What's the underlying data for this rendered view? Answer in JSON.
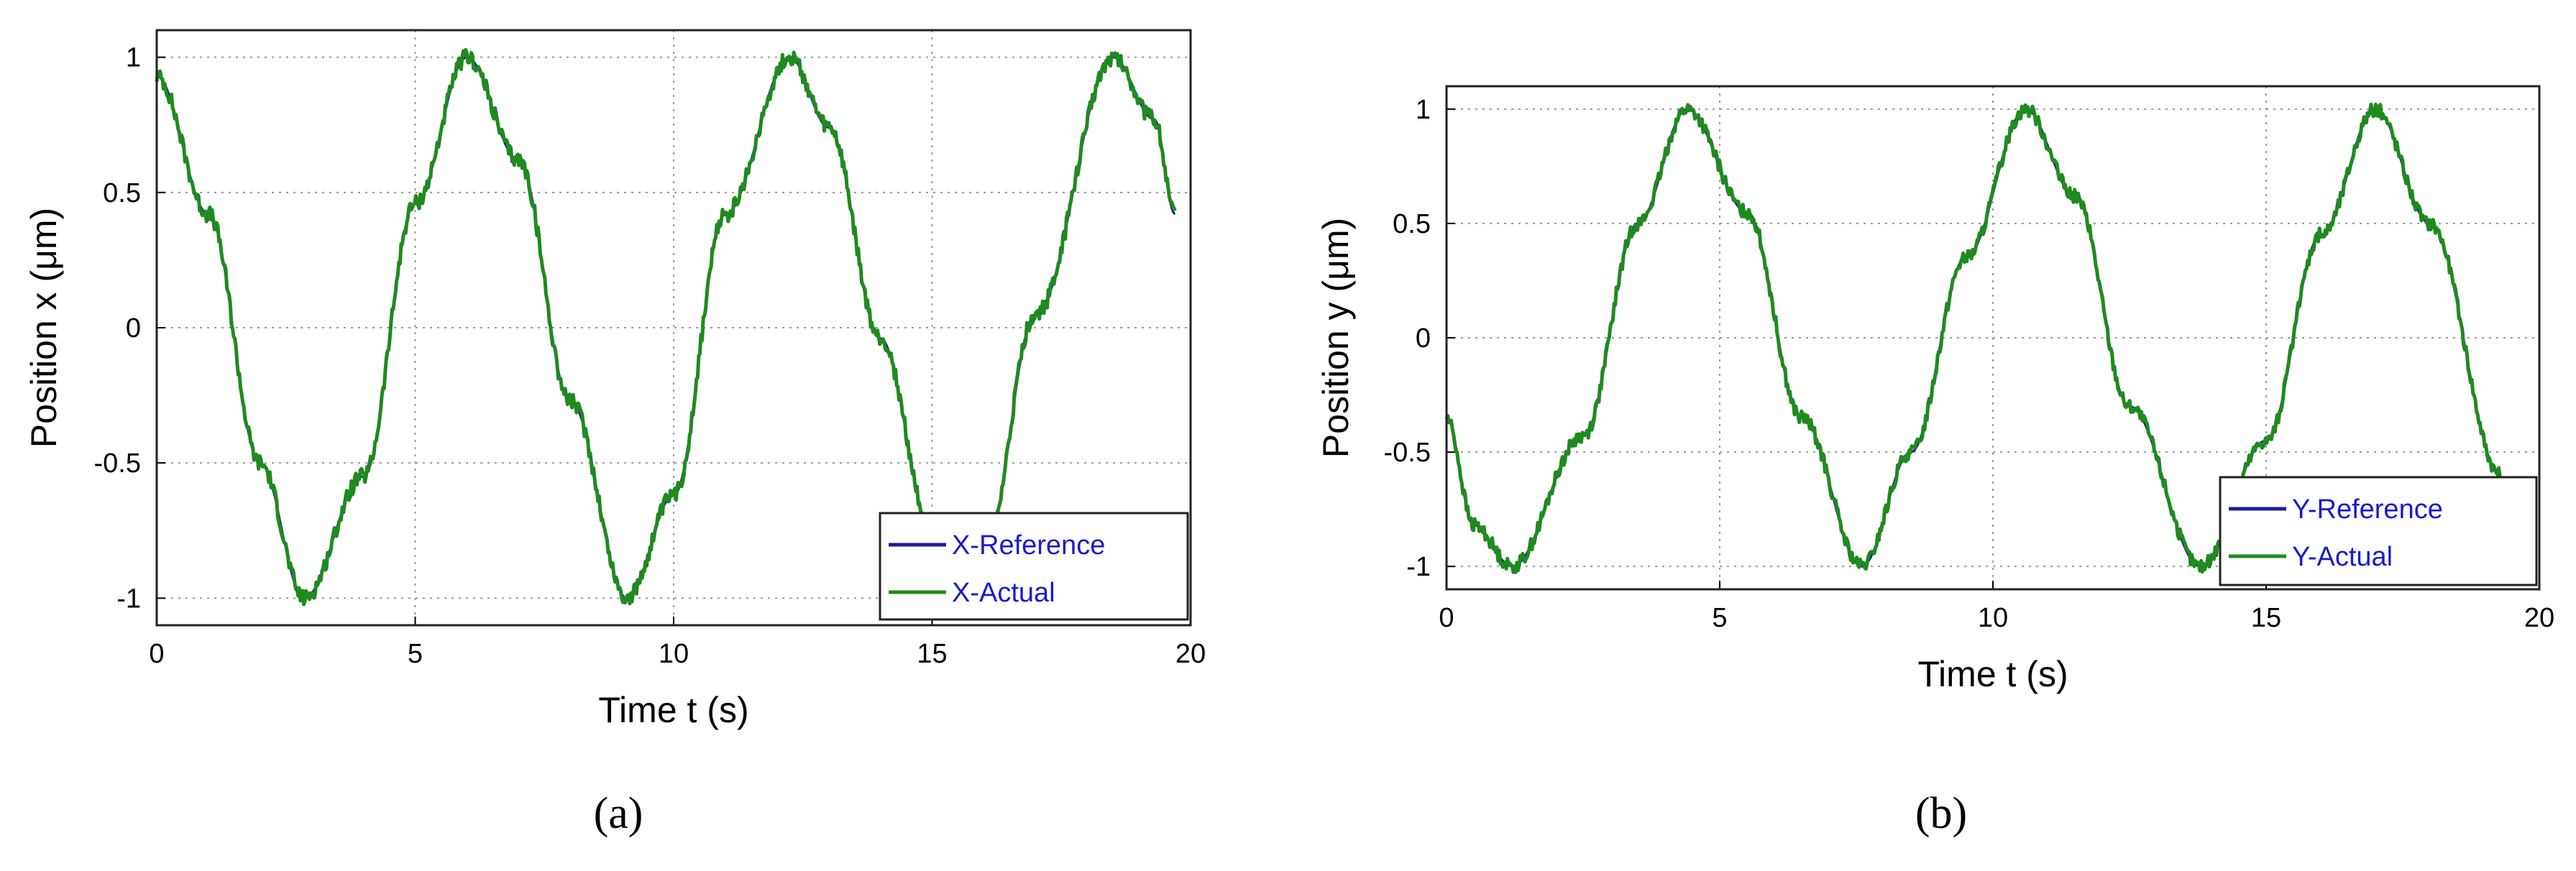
{
  "colors": {
    "reference": "#1c1c9c",
    "actual": "#1f8a1f",
    "grid": "#9a9a9a",
    "legend_text": "#1a1acc"
  },
  "chart_data": [
    {
      "panel": "a",
      "type": "line",
      "xlabel": "Time t (s)",
      "ylabel": "Position x (μm)",
      "xlim": [
        0,
        20
      ],
      "ylim": [
        -1.1,
        1.1
      ],
      "xticks": [
        0,
        5,
        10,
        15,
        20
      ],
      "yticks": [
        1,
        0.5,
        0,
        -0.5,
        -1
      ],
      "ytick_labels": [
        "1",
        "0.5",
        "0",
        "-0.5",
        "-1"
      ],
      "grid": true,
      "legend_position": "bottom-right",
      "series": [
        {
          "name": "X-Reference",
          "x": [
            0,
            1,
            2,
            2.85,
            4,
            5,
            6,
            7,
            8,
            9.1,
            10,
            11,
            12.25,
            13,
            14,
            15,
            15.5,
            16,
            17,
            18.5,
            19.3,
            19.7
          ],
          "y": [
            0.93,
            0.42,
            -0.5,
            -1,
            -0.55,
            0.46,
            1,
            0.62,
            -0.27,
            -1,
            -0.62,
            0.42,
            1,
            0.74,
            -0.04,
            -0.75,
            -1,
            -0.85,
            0.05,
            1,
            0.77,
            0.42
          ]
        },
        {
          "name": "X-Actual",
          "x": [
            0,
            1,
            2,
            2.85,
            4,
            5,
            6,
            7,
            8,
            9.1,
            10,
            11,
            12.25,
            13,
            14,
            15,
            15.5,
            16,
            17,
            18.5,
            19.3,
            19.7
          ],
          "y": [
            0.93,
            0.42,
            -0.5,
            -1,
            -0.55,
            0.46,
            1,
            0.62,
            -0.27,
            -1,
            -0.62,
            0.42,
            1,
            0.74,
            -0.04,
            -0.75,
            -1,
            -0.85,
            0.05,
            1,
            0.77,
            0.42
          ]
        }
      ],
      "caption": "(a)"
    },
    {
      "panel": "b",
      "type": "line",
      "xlabel": "Time t (s)",
      "ylabel": "Position y (μm)",
      "xlim": [
        0,
        20
      ],
      "ylim": [
        -1.1,
        1.1
      ],
      "xticks": [
        0,
        5,
        10,
        15,
        20
      ],
      "yticks": [
        1,
        0.5,
        0,
        -0.5,
        -1
      ],
      "ytick_labels": [
        "1",
        "0.5",
        "0",
        "-0.5",
        "-1"
      ],
      "grid": true,
      "legend_position": "bottom-right",
      "series": [
        {
          "name": "Y-Reference",
          "x": [
            0,
            0.5,
            1.2,
            2.5,
            3.5,
            4.4,
            5.5,
            6.5,
            7.6,
            8.5,
            9.5,
            10.6,
            11.5,
            12.5,
            13.8,
            15,
            16,
            17,
            18,
            19.3
          ],
          "y": [
            -0.35,
            -0.82,
            -1,
            -0.43,
            0.5,
            1,
            0.55,
            -0.35,
            -1,
            -0.5,
            0.35,
            1,
            0.62,
            -0.3,
            -1,
            -0.45,
            0.45,
            1,
            0.5,
            -0.6
          ]
        },
        {
          "name": "Y-Actual",
          "x": [
            0,
            0.5,
            1.2,
            2.5,
            3.5,
            4.4,
            5.5,
            6.5,
            7.6,
            8.5,
            9.5,
            10.6,
            11.5,
            12.5,
            13.8,
            15,
            16,
            17,
            18,
            19.3
          ],
          "y": [
            -0.35,
            -0.82,
            -1,
            -0.43,
            0.5,
            1,
            0.55,
            -0.35,
            -1,
            -0.5,
            0.35,
            1,
            0.62,
            -0.3,
            -1,
            -0.45,
            0.45,
            1,
            0.5,
            -0.6
          ]
        }
      ],
      "caption": "(b)"
    }
  ]
}
